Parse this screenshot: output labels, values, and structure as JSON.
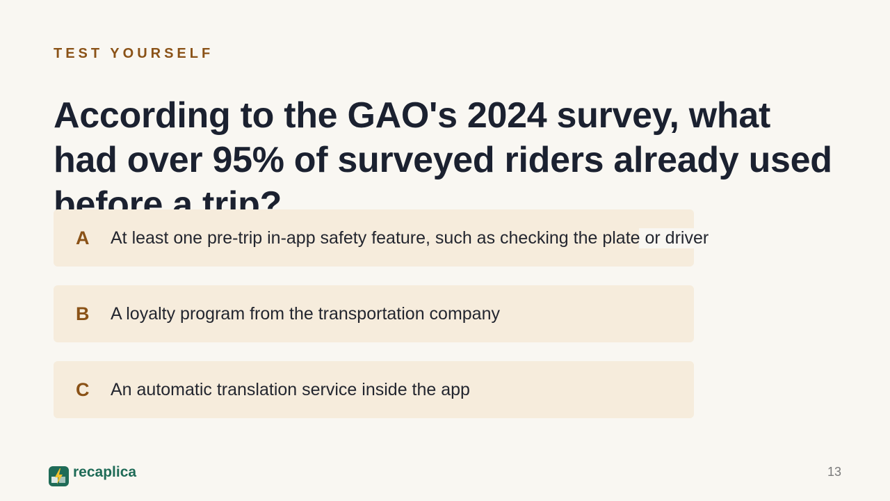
{
  "slide": {
    "eyebrow": "TEST YOURSELF",
    "question": "According to the GAO's 2024 survey, what had over 95% of surveyed riders already used before a trip?",
    "options": [
      {
        "letter": "A",
        "text": "At least one pre-trip in-app safety feature, such as checking the plate or driver"
      },
      {
        "letter": "B",
        "text": "A loyalty program from the transportation company"
      },
      {
        "letter": "C",
        "text": "An automatic translation service inside the app"
      }
    ]
  },
  "footer": {
    "brand": "recaplica",
    "page_number": "13"
  },
  "colors": {
    "background": "#f9f7f2",
    "accent": "#8a5217",
    "option_bg": "#f6ecdc",
    "heading": "#1b2130",
    "brand": "#1f6b57"
  },
  "icons": {
    "logo": "lightning-bolt-icon"
  }
}
